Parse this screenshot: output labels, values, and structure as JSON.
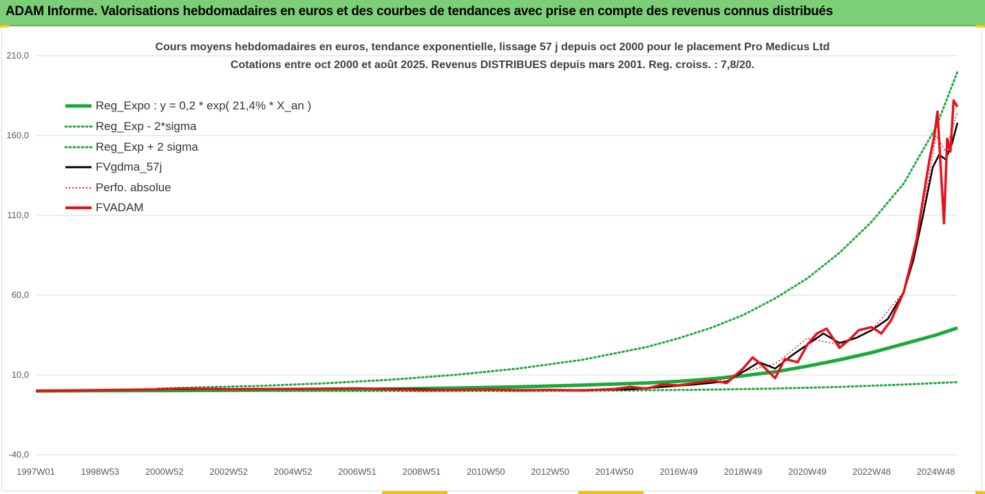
{
  "banner": {
    "title": "ADAM Informe. Valorisations hebdomadaires en euros et des courbes de tendances avec prise en compte des revenus connus distribués"
  },
  "colors": {
    "banner_bg": "#7ccf76",
    "reg_expo": "#1aaa3c",
    "fvgdma": "#000000",
    "fvadam": "#e8101a",
    "perfo": "#e8101a",
    "corner_accent": "#f2c200"
  },
  "chart_data": {
    "type": "line",
    "title_line1": "Cours moyens hebdomadaires en euros, tendance exponentielle, lissage 57 j depuis oct 2000 pour le placement Pro Medicus Ltd",
    "title_line2": "Cotations entre oct 2000 et août 2025. Revenus DISTRIBUES depuis mars 2001. Reg. croiss. : 7,8/20.",
    "xlabel": "",
    "ylabel": "",
    "ylim": [
      -40,
      210
    ],
    "xlim": [
      1997.0,
      2025.67
    ],
    "yticks": [
      "210,0",
      "160,0",
      "110,0",
      "60,0",
      "10,0",
      "-40,0"
    ],
    "ytick_values": [
      210,
      160,
      110,
      60,
      10,
      -40
    ],
    "xticks": [
      "1997W01",
      "1998W53",
      "2000W52",
      "2002W52",
      "2004W52",
      "2006W51",
      "2008W51",
      "2010W50",
      "2012W50",
      "2014W50",
      "2016W49",
      "2018W49",
      "2020W49",
      "2022W48",
      "2024W48"
    ],
    "xtick_values": [
      1997.0,
      1999.0,
      2001.0,
      2003.0,
      2005.0,
      2007.0,
      2009.0,
      2011.0,
      2013.0,
      2015.0,
      2017.0,
      2019.0,
      2021.0,
      2023.0,
      2025.0
    ],
    "grid": "horizontal",
    "legend_position": "top-left",
    "legend": [
      {
        "key": "reg_expo",
        "label": "Reg_Expo : y = 0,2 * exp( 21,4% *  X_an )",
        "style": "thick-solid",
        "color": "#1aaa3c"
      },
      {
        "key": "reg_minus",
        "label": "Reg_Exp - 2*sigma",
        "style": "dotted",
        "color": "#1aaa3c"
      },
      {
        "key": "reg_plus",
        "label": "Reg_Exp + 2 sigma",
        "style": "dotted",
        "color": "#1aaa3c"
      },
      {
        "key": "fvgdma",
        "label": "FVgdma_57j",
        "style": "solid",
        "color": "#000000"
      },
      {
        "key": "perfo",
        "label": "Perfo. absolue",
        "style": "dotted",
        "color": "#e8101a"
      },
      {
        "key": "fvadam",
        "label": "FVADAM",
        "style": "thick-solid",
        "color": "#e8101a"
      }
    ],
    "series": [
      {
        "name": "Reg_Expo : y = 0,2 * exp( 21,4% *  X_an )",
        "x": [
          1997.0,
          2000.0,
          2002.0,
          2004.0,
          2006.0,
          2008.0,
          2010.0,
          2012.0,
          2014.0,
          2016.0,
          2017.0,
          2018.0,
          2019.0,
          2020.0,
          2021.0,
          2022.0,
          2023.0,
          2024.0,
          2025.0,
          2025.67
        ],
        "y": [
          0.0,
          0.2,
          0.3,
          0.5,
          0.8,
          1.2,
          1.8,
          2.6,
          3.6,
          5.0,
          6.0,
          7.5,
          9.5,
          12.0,
          15.5,
          19.5,
          24.0,
          29.5,
          35.0,
          39.5
        ]
      },
      {
        "name": "Reg_Exp - 2*sigma",
        "x": [
          2000.8,
          2004.0,
          2008.0,
          2012.0,
          2015.0,
          2018.0,
          2020.0,
          2022.0,
          2024.0,
          2025.67
        ],
        "y": [
          0.0,
          0.0,
          0.0,
          0.0,
          0.2,
          0.8,
          1.5,
          2.5,
          4.0,
          5.5
        ]
      },
      {
        "name": "Reg_Exp + 2 sigma",
        "x": [
          2000.8,
          2002.0,
          2004.0,
          2006.0,
          2008.0,
          2010.0,
          2012.0,
          2014.0,
          2016.0,
          2017.0,
          2018.0,
          2019.0,
          2020.0,
          2021.0,
          2022.0,
          2023.0,
          2024.0,
          2025.0,
          2025.67
        ],
        "y": [
          1.5,
          2.2,
          3.2,
          4.8,
          7.0,
          10.0,
          14.0,
          19.5,
          27.5,
          33.0,
          39.5,
          47.5,
          58.0,
          70.5,
          86.5,
          106.0,
          130.0,
          165.0,
          200.0
        ]
      },
      {
        "name": "FVgdma_57j",
        "x": [
          1997.0,
          2000.8,
          2002.0,
          2004.0,
          2006.0,
          2008.0,
          2010.0,
          2012.0,
          2014.0,
          2015.5,
          2016.5,
          2017.5,
          2018.5,
          2019.0,
          2019.5,
          2020.0,
          2020.5,
          2021.0,
          2021.5,
          2022.0,
          2022.5,
          2023.0,
          2023.5,
          2024.0,
          2024.3,
          2024.6,
          2024.9,
          2025.1,
          2025.3,
          2025.5,
          2025.67
        ],
        "y": [
          0.0,
          1.0,
          1.1,
          1.2,
          1.5,
          1.4,
          0.7,
          0.7,
          0.6,
          1.0,
          2.5,
          4.0,
          6.0,
          12.0,
          18.0,
          14.0,
          22.0,
          29.0,
          36.0,
          30.0,
          33.0,
          38.0,
          45.0,
          62.0,
          82.0,
          110.0,
          140.0,
          148.0,
          145.0,
          155.0,
          168.0
        ]
      },
      {
        "name": "Perfo. absolue",
        "x": [
          1997.0,
          2000.8,
          2005.0,
          2010.0,
          2015.0,
          2018.0,
          2019.0,
          2020.0,
          2021.0,
          2022.0,
          2023.0,
          2024.0,
          2024.5,
          2025.0,
          2025.3,
          2025.67
        ],
        "y": [
          0.0,
          1.0,
          1.3,
          0.8,
          0.8,
          5.0,
          12.0,
          17.0,
          33.0,
          29.0,
          38.0,
          62.0,
          100.0,
          160.0,
          150.0,
          175.0
        ]
      },
      {
        "name": "FVADAM",
        "x": [
          1997.0,
          2000.8,
          2001.5,
          2003.0,
          2005.0,
          2007.0,
          2008.0,
          2009.0,
          2010.0,
          2011.0,
          2012.0,
          2013.0,
          2014.0,
          2015.0,
          2015.5,
          2016.0,
          2016.5,
          2017.0,
          2017.5,
          2018.0,
          2018.5,
          2019.0,
          2019.3,
          2019.6,
          2020.0,
          2020.3,
          2020.7,
          2021.0,
          2021.3,
          2021.6,
          2022.0,
          2022.3,
          2022.6,
          2023.0,
          2023.3,
          2023.6,
          2024.0,
          2024.2,
          2024.4,
          2024.6,
          2024.8,
          2024.95,
          2025.05,
          2025.15,
          2025.25,
          2025.35,
          2025.45,
          2025.55,
          2025.67
        ],
        "y": [
          0.0,
          1.0,
          1.5,
          1.1,
          1.3,
          1.6,
          1.0,
          0.4,
          0.6,
          0.9,
          0.4,
          0.6,
          0.3,
          1.2,
          2.5,
          1.5,
          4.0,
          3.5,
          5.0,
          6.5,
          5.0,
          14.0,
          21.0,
          16.0,
          8.0,
          20.0,
          18.0,
          29.0,
          36.0,
          39.0,
          27.0,
          32.0,
          38.0,
          40.0,
          36.0,
          44.0,
          62.0,
          78.0,
          95.0,
          120.0,
          145.0,
          160.0,
          175.0,
          140.0,
          105.0,
          158.0,
          150.0,
          182.0,
          178.0
        ]
      }
    ]
  }
}
